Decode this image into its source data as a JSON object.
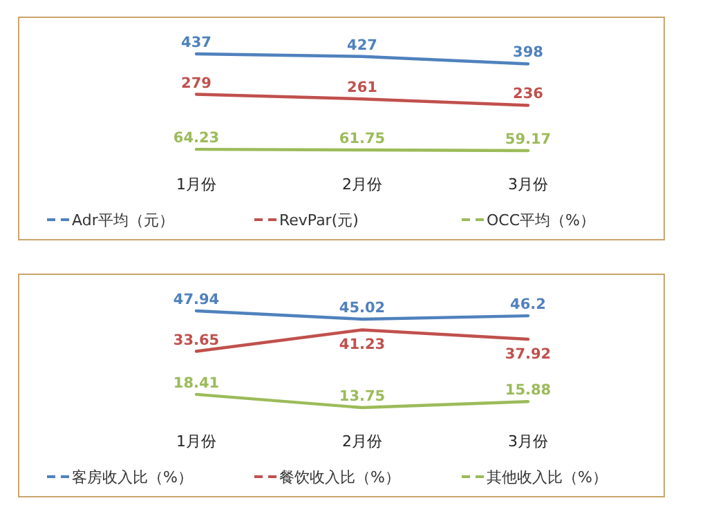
{
  "chart_data": [
    {
      "type": "line",
      "categories": [
        "1月份",
        "2月份",
        "3月份"
      ],
      "data_labels": true,
      "legend": "bottom",
      "grid": false,
      "marker": "none",
      "line_style": "solid",
      "series": [
        {
          "name": "Adr平均（元）",
          "color": "#4f81bd",
          "values": [
            437,
            427,
            398
          ]
        },
        {
          "name": "RevPar(元)",
          "color": "#c0504d",
          "values": [
            279,
            261,
            236
          ]
        },
        {
          "name": "OCC平均（%）",
          "color": "#9bbb59",
          "values": [
            64.23,
            61.75,
            59.17
          ]
        }
      ]
    },
    {
      "type": "line",
      "categories": [
        "1月份",
        "2月份",
        "3月份"
      ],
      "data_labels": true,
      "legend": "bottom",
      "grid": false,
      "marker": "none",
      "line_style": "solid",
      "series": [
        {
          "name": "客房收入比（%）",
          "color": "#4f81bd",
          "values": [
            47.94,
            45.02,
            46.2
          ]
        },
        {
          "name": "餐饮收入比（%）",
          "color": "#c0504d",
          "values": [
            33.65,
            41.23,
            37.92
          ]
        },
        {
          "name": "其他收入比（%）",
          "color": "#9bbb59",
          "values": [
            18.41,
            13.75,
            15.88
          ]
        }
      ]
    }
  ]
}
